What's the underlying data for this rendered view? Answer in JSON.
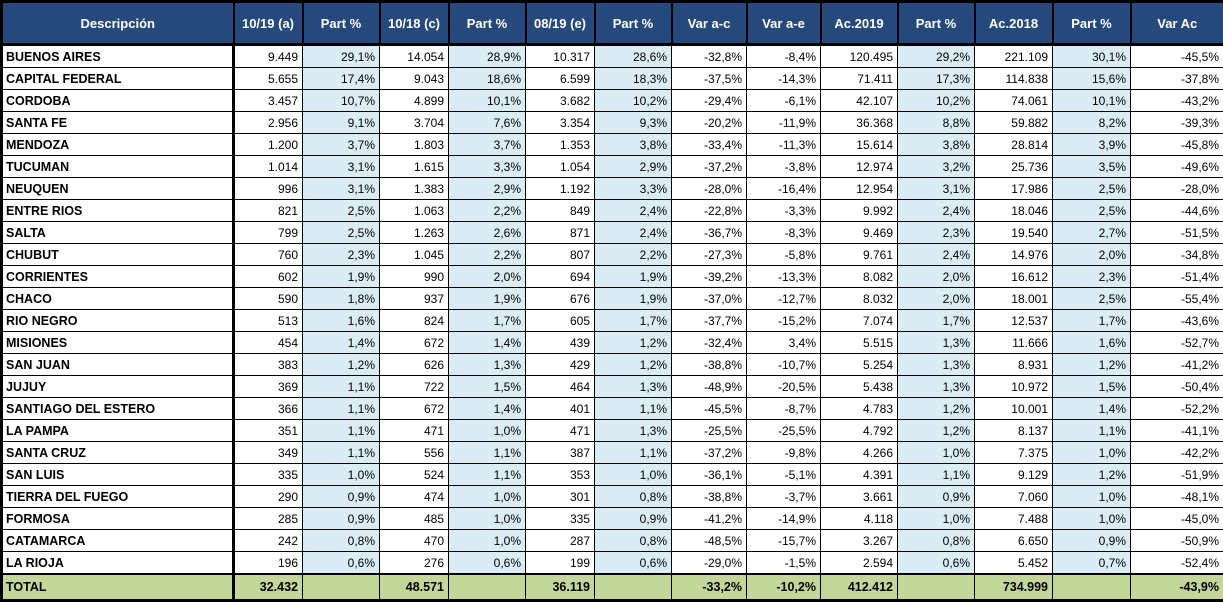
{
  "table": {
    "headers": [
      "Descripción",
      "10/19 (a)",
      "Part %",
      "10/18 (c)",
      "Part %",
      "08/19 (e)",
      "Part %",
      "Var a-c",
      "Var a-e",
      "Ac.2019",
      "Part %",
      "Ac.2018",
      "Part %",
      "Var Ac"
    ],
    "shaded_columns": [
      2,
      4,
      6,
      10,
      12
    ],
    "rows": [
      [
        "BUENOS AIRES",
        "9.449",
        "29,1%",
        "14.054",
        "28,9%",
        "10.317",
        "28,6%",
        "-32,8%",
        "-8,4%",
        "120.495",
        "29,2%",
        "221.109",
        "30,1%",
        "-45,5%"
      ],
      [
        "CAPITAL FEDERAL",
        "5.655",
        "17,4%",
        "9.043",
        "18,6%",
        "6.599",
        "18,3%",
        "-37,5%",
        "-14,3%",
        "71.411",
        "17,3%",
        "114.838",
        "15,6%",
        "-37,8%"
      ],
      [
        "CORDOBA",
        "3.457",
        "10,7%",
        "4.899",
        "10,1%",
        "3.682",
        "10,2%",
        "-29,4%",
        "-6,1%",
        "42.107",
        "10,2%",
        "74.061",
        "10,1%",
        "-43,2%"
      ],
      [
        "SANTA FE",
        "2.956",
        "9,1%",
        "3.704",
        "7,6%",
        "3.354",
        "9,3%",
        "-20,2%",
        "-11,9%",
        "36.368",
        "8,8%",
        "59.882",
        "8,2%",
        "-39,3%"
      ],
      [
        "MENDOZA",
        "1.200",
        "3,7%",
        "1.803",
        "3,7%",
        "1.353",
        "3,8%",
        "-33,4%",
        "-11,3%",
        "15.614",
        "3,8%",
        "28.814",
        "3,9%",
        "-45,8%"
      ],
      [
        "TUCUMAN",
        "1.014",
        "3,1%",
        "1.615",
        "3,3%",
        "1.054",
        "2,9%",
        "-37,2%",
        "-3,8%",
        "12.974",
        "3,2%",
        "25.736",
        "3,5%",
        "-49,6%"
      ],
      [
        "NEUQUEN",
        "996",
        "3,1%",
        "1.383",
        "2,9%",
        "1.192",
        "3,3%",
        "-28,0%",
        "-16,4%",
        "12.954",
        "3,1%",
        "17.986",
        "2,5%",
        "-28,0%"
      ],
      [
        "ENTRE RIOS",
        "821",
        "2,5%",
        "1.063",
        "2,2%",
        "849",
        "2,4%",
        "-22,8%",
        "-3,3%",
        "9.992",
        "2,4%",
        "18.046",
        "2,5%",
        "-44,6%"
      ],
      [
        "SALTA",
        "799",
        "2,5%",
        "1.263",
        "2,6%",
        "871",
        "2,4%",
        "-36,7%",
        "-8,3%",
        "9.469",
        "2,3%",
        "19.540",
        "2,7%",
        "-51,5%"
      ],
      [
        "CHUBUT",
        "760",
        "2,3%",
        "1.045",
        "2,2%",
        "807",
        "2,2%",
        "-27,3%",
        "-5,8%",
        "9.761",
        "2,4%",
        "14.976",
        "2,0%",
        "-34,8%"
      ],
      [
        "CORRIENTES",
        "602",
        "1,9%",
        "990",
        "2,0%",
        "694",
        "1,9%",
        "-39,2%",
        "-13,3%",
        "8.082",
        "2,0%",
        "16.612",
        "2,3%",
        "-51,4%"
      ],
      [
        "CHACO",
        "590",
        "1,8%",
        "937",
        "1,9%",
        "676",
        "1,9%",
        "-37,0%",
        "-12,7%",
        "8.032",
        "2,0%",
        "18.001",
        "2,5%",
        "-55,4%"
      ],
      [
        "RIO NEGRO",
        "513",
        "1,6%",
        "824",
        "1,7%",
        "605",
        "1,7%",
        "-37,7%",
        "-15,2%",
        "7.074",
        "1,7%",
        "12.537",
        "1,7%",
        "-43,6%"
      ],
      [
        "MISIONES",
        "454",
        "1,4%",
        "672",
        "1,4%",
        "439",
        "1,2%",
        "-32,4%",
        "3,4%",
        "5.515",
        "1,3%",
        "11.666",
        "1,6%",
        "-52,7%"
      ],
      [
        "SAN JUAN",
        "383",
        "1,2%",
        "626",
        "1,3%",
        "429",
        "1,2%",
        "-38,8%",
        "-10,7%",
        "5.254",
        "1,3%",
        "8.931",
        "1,2%",
        "-41,2%"
      ],
      [
        "JUJUY",
        "369",
        "1,1%",
        "722",
        "1,5%",
        "464",
        "1,3%",
        "-48,9%",
        "-20,5%",
        "5.438",
        "1,3%",
        "10.972",
        "1,5%",
        "-50,4%"
      ],
      [
        "SANTIAGO DEL ESTERO",
        "366",
        "1,1%",
        "672",
        "1,4%",
        "401",
        "1,1%",
        "-45,5%",
        "-8,7%",
        "4.783",
        "1,2%",
        "10.001",
        "1,4%",
        "-52,2%"
      ],
      [
        "LA PAMPA",
        "351",
        "1,1%",
        "471",
        "1,0%",
        "471",
        "1,3%",
        "-25,5%",
        "-25,5%",
        "4.792",
        "1,2%",
        "8.137",
        "1,1%",
        "-41,1%"
      ],
      [
        "SANTA CRUZ",
        "349",
        "1,1%",
        "556",
        "1,1%",
        "387",
        "1,1%",
        "-37,2%",
        "-9,8%",
        "4.266",
        "1,0%",
        "7.375",
        "1,0%",
        "-42,2%"
      ],
      [
        "SAN LUIS",
        "335",
        "1,0%",
        "524",
        "1,1%",
        "353",
        "1,0%",
        "-36,1%",
        "-5,1%",
        "4.391",
        "1,1%",
        "9.129",
        "1,2%",
        "-51,9%"
      ],
      [
        "TIERRA DEL FUEGO",
        "290",
        "0,9%",
        "474",
        "1,0%",
        "301",
        "0,8%",
        "-38,8%",
        "-3,7%",
        "3.661",
        "0,9%",
        "7.060",
        "1,0%",
        "-48,1%"
      ],
      [
        "FORMOSA",
        "285",
        "0,9%",
        "485",
        "1,0%",
        "335",
        "0,9%",
        "-41,2%",
        "-14,9%",
        "4.118",
        "1,0%",
        "7.488",
        "1,0%",
        "-45,0%"
      ],
      [
        "CATAMARCA",
        "242",
        "0,8%",
        "470",
        "1,0%",
        "287",
        "0,8%",
        "-48,5%",
        "-15,7%",
        "3.267",
        "0,8%",
        "6.650",
        "0,9%",
        "-50,9%"
      ],
      [
        "LA RIOJA",
        "196",
        "0,6%",
        "276",
        "0,6%",
        "199",
        "0,6%",
        "-29,0%",
        "-1,5%",
        "2.594",
        "0,6%",
        "5.452",
        "0,7%",
        "-52,4%"
      ]
    ],
    "total_row": [
      "TOTAL",
      "32.432",
      "",
      "48.571",
      "",
      "36.119",
      "",
      "-33,2%",
      "-10,2%",
      "412.412",
      "",
      "734.999",
      "",
      "-43,9%"
    ],
    "colors": {
      "header_bg": "#25497A",
      "header_text": "#FFFFFF",
      "shade_blue": "#DBEDF4",
      "total_green": "#C4D79B",
      "border": "#000000"
    }
  }
}
